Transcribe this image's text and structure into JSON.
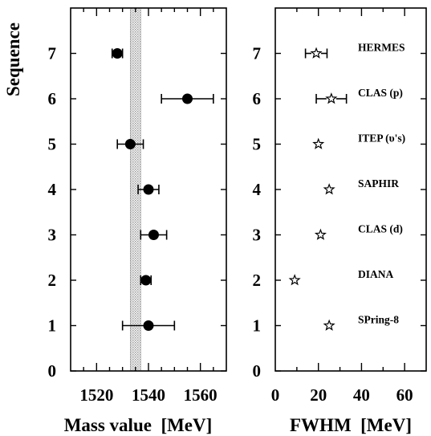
{
  "chart_data": [
    {
      "type": "scatter",
      "xlabel": "Mass value  [MeV]",
      "ylabel": "Sequence",
      "xlim": [
        1510,
        1570
      ],
      "ylim": [
        0,
        8
      ],
      "xticks": [
        1520,
        1540,
        1560
      ],
      "yticks": [
        0,
        1,
        2,
        3,
        4,
        5,
        6,
        7
      ],
      "band": {
        "x_range": [
          1533,
          1537
        ],
        "fill": "dotted-gray"
      },
      "points": [
        {
          "sequence": 7,
          "mass": 1528,
          "err_low": 2,
          "err_high": 2
        },
        {
          "sequence": 6,
          "mass": 1555,
          "err_low": 10,
          "err_high": 10
        },
        {
          "sequence": 5,
          "mass": 1533,
          "err_low": 5,
          "err_high": 5
        },
        {
          "sequence": 4,
          "mass": 1540,
          "err_low": 4,
          "err_high": 4
        },
        {
          "sequence": 3,
          "mass": 1542,
          "err_low": 5,
          "err_high": 5
        },
        {
          "sequence": 2,
          "mass": 1539,
          "err_low": 2,
          "err_high": 2
        },
        {
          "sequence": 1,
          "mass": 1540,
          "err_low": 10,
          "err_high": 10
        }
      ]
    },
    {
      "type": "scatter",
      "xlabel": "FWHM  [MeV]",
      "xlim": [
        0,
        70
      ],
      "ylim": [
        0,
        8
      ],
      "xticks": [
        0,
        20,
        40,
        60
      ],
      "yticks": [
        0,
        1,
        2,
        3,
        4,
        5,
        6,
        7
      ],
      "points": [
        {
          "sequence": 7,
          "fwhm": 19,
          "err_low": 5,
          "err_high": 5,
          "label": "HERMES"
        },
        {
          "sequence": 6,
          "fwhm": 26,
          "err_low": 7,
          "err_high": 7,
          "label": "CLAS (p)"
        },
        {
          "sequence": 5,
          "fwhm": 20,
          "label": "ITEP (υ's)"
        },
        {
          "sequence": 4,
          "fwhm": 25,
          "label": "SAPHIR"
        },
        {
          "sequence": 3,
          "fwhm": 21,
          "label": "CLAS (d)"
        },
        {
          "sequence": 2,
          "fwhm": 9,
          "label": "DIANA"
        },
        {
          "sequence": 1,
          "fwhm": 25,
          "label": "SPring-8"
        }
      ]
    }
  ]
}
